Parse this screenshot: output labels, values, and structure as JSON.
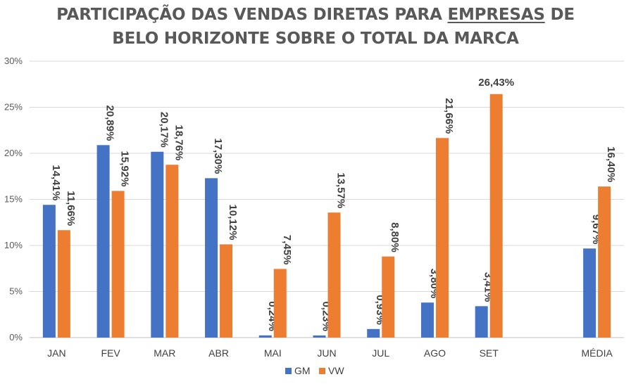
{
  "chart_data": {
    "type": "bar",
    "title": {
      "line1_before": "PARTICIPAÇÃO DAS VENDAS DIRETAS PARA ",
      "line1_underlined": "EMPRESAS",
      "line1_after": " DE",
      "line2": "BELO HORIZONTE SOBRE O TOTAL DA MARCA"
    },
    "categories": [
      "JAN",
      "FEV",
      "MAR",
      "ABR",
      "MAI",
      "JUN",
      "JUL",
      "AGO",
      "SET",
      "",
      "MÉDIA"
    ],
    "series": [
      {
        "name": "GM",
        "color": "#4472C4",
        "values": [
          14.41,
          20.89,
          20.17,
          17.3,
          0.24,
          0.23,
          0.93,
          3.8,
          3.41,
          null,
          9.67
        ],
        "labels": [
          "14,41%",
          "20,89%",
          "20,17%",
          "17,30%",
          "0,24%",
          "0,23%",
          "0,93%",
          "3,80%",
          "3,41%",
          "",
          "9,67%"
        ]
      },
      {
        "name": "VW",
        "color": "#ED7D31",
        "values": [
          11.66,
          15.92,
          18.76,
          10.12,
          7.45,
          13.57,
          8.8,
          21.66,
          26.43,
          null,
          16.4
        ],
        "labels": [
          "11,66%",
          "15,92%",
          "18,76%",
          "10,12%",
          "7,45%",
          "13,57%",
          "8,80%",
          "21,66%",
          "26,43%",
          "",
          "16,40%"
        ]
      }
    ],
    "ylim": [
      0,
      30
    ],
    "yticks": [
      0,
      5,
      10,
      15,
      20,
      25,
      30
    ],
    "ytick_labels": [
      "0%",
      "5%",
      "10%",
      "15%",
      "20%",
      "25%",
      "30%"
    ],
    "xlabel": "",
    "ylabel": "",
    "grid": true,
    "legend_position": "bottom-center",
    "horizontal_label_index": [
      {
        "series": 1,
        "category": 8
      }
    ]
  }
}
